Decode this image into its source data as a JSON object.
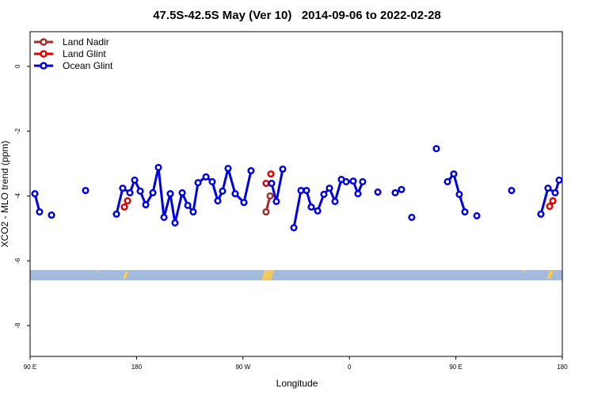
{
  "chart_data": {
    "type": "line",
    "title": "47.5S-42.5S May (Ver 10)   2014-09-06 to 2022-02-28",
    "x_label": "Longitude",
    "y_label": "XCO2 - MLO trend (ppm)",
    "xlim": [
      90,
      540
    ],
    "ylim": [
      -8.95,
      1.07
    ],
    "xticks": [
      {
        "value": 90,
        "label": "90 E"
      },
      180,
      {
        "value": 270,
        "label": "90 W"
      },
      {
        "value": 360,
        "label": "0"
      },
      {
        "value": 450,
        "label": "90 E"
      },
      {
        "value": 540,
        "label": "180"
      }
    ],
    "yticks": [
      0,
      -2,
      -4,
      -6,
      -8
    ],
    "grid": false,
    "legend": "top-left",
    "series": [
      {
        "name": "Land Nadir",
        "color": "#a52a2a",
        "x": [
          289.5,
          292.9
        ],
        "values": [
          -4.49,
          -4.0
        ]
      },
      {
        "name": "Land Glint",
        "color": "#e00000",
        "x": [
          169.7,
          172.4,
          null,
          289.5,
          null,
          293.6,
          null,
          529.3,
          532.0
        ],
        "values": [
          -4.34,
          -4.15,
          null,
          -3.61,
          null,
          -3.32,
          null,
          -4.32,
          -4.15
        ]
      },
      {
        "name": "Ocean Glint",
        "color": "#0000e6",
        "x": [
          94.0,
          98.0,
          null,
          108.1,
          null,
          136.9,
          null,
          163.0,
          168.3,
          174.4,
          178.4,
          183.1,
          187.8,
          193.8,
          198.5,
          203.2,
          208.5,
          212.5,
          218.6,
          223.3,
          227.9,
          232.0,
          238.7,
          244.0,
          248.7,
          252.7,
          257.4,
          263.4,
          270.8,
          276.8,
          null,
          294.2,
          298.2,
          303.6,
          null,
          313.0,
          319.0,
          323.7,
          327.7,
          333.1,
          338.4,
          343.1,
          347.8,
          353.2,
          357.2,
          363.2,
          367.2,
          371.2,
          null,
          384.0,
          null,
          398.7,
          404.0,
          null,
          412.7,
          null,
          433.5,
          null,
          442.9,
          448.2,
          452.9,
          457.6,
          null,
          467.7,
          null,
          497.1,
          null,
          521.9,
          527.9,
          533.9,
          537.3
        ],
        "values": [
          -3.93,
          -4.49,
          null,
          -4.59,
          null,
          -3.83,
          null,
          -4.56,
          -3.76,
          -3.9,
          -3.51,
          -3.85,
          -4.27,
          -3.9,
          -3.12,
          -4.66,
          -3.93,
          -4.83,
          -3.9,
          -4.29,
          -4.49,
          -3.59,
          -3.41,
          -3.56,
          -4.15,
          -3.85,
          -3.15,
          -3.93,
          -4.2,
          -3.22,
          null,
          -3.61,
          -4.17,
          -3.17,
          null,
          -4.98,
          -3.83,
          -3.83,
          -4.34,
          -4.46,
          -3.95,
          -3.76,
          -4.17,
          -3.49,
          -3.56,
          -3.54,
          -3.93,
          -3.56,
          null,
          -3.88,
          null,
          -3.9,
          -3.8,
          null,
          -4.66,
          null,
          -2.54,
          null,
          -3.56,
          -3.32,
          -3.95,
          -4.49,
          null,
          -4.61,
          null,
          -3.83,
          null,
          -4.56,
          -3.76,
          -3.9,
          -3.51
        ]
      }
    ]
  }
}
